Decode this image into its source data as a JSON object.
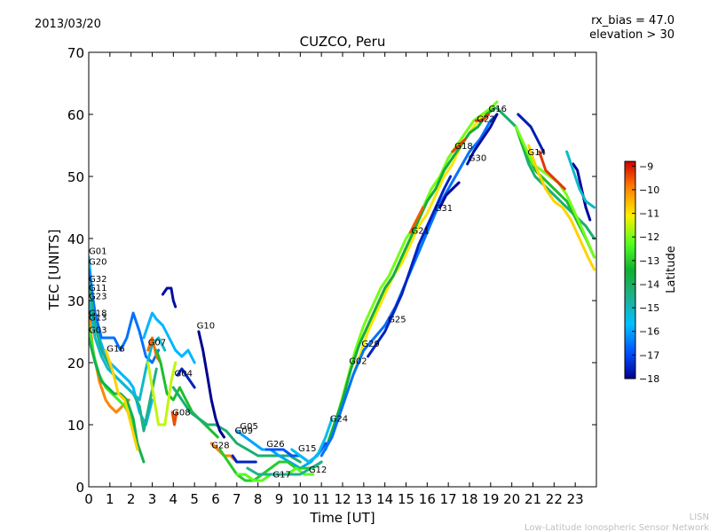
{
  "header": {
    "date": "2013/03/20",
    "rx_bias": "rx_bias = 47.0",
    "elevation": "elevation > 30"
  },
  "footer": {
    "org_short": "LISN",
    "org_long": "Low-Latitude Ionospheric Sensor Network"
  },
  "colors": {
    "low": "#00008f",
    "c1": "#0050ff",
    "c2": "#00c0ff",
    "c3": "#1fb08a",
    "c4": "#10b030",
    "c5": "#50ff20",
    "c6": "#ffef00",
    "c7": "#ff8000",
    "high": "#d00000"
  },
  "chart_data": {
    "type": "line",
    "title": "CUZCO, Peru",
    "xlabel": "Time [UT]",
    "ylabel": "TEC [UNITS]",
    "xlim": [
      0,
      24
    ],
    "ylim": [
      0,
      70
    ],
    "xticks": [
      0,
      1,
      2,
      3,
      4,
      5,
      6,
      7,
      8,
      9,
      10,
      11,
      12,
      13,
      14,
      15,
      16,
      17,
      18,
      19,
      20,
      21,
      22,
      23
    ],
    "yticks": [
      0,
      10,
      20,
      30,
      40,
      50,
      60,
      70
    ],
    "colorbar": {
      "label": "Latitude",
      "range": [
        -18,
        -8.8
      ],
      "ticks": [
        -9,
        -10,
        -11,
        -12,
        -13,
        -14,
        -15,
        -16,
        -17,
        -18
      ]
    },
    "labels": [
      {
        "text": "G01",
        "x": 0.0,
        "y": 37.5
      },
      {
        "text": "G20",
        "x": 0.0,
        "y": 35.8
      },
      {
        "text": "G32",
        "x": 0.0,
        "y": 33.0
      },
      {
        "text": "G11",
        "x": 0.0,
        "y": 31.6
      },
      {
        "text": "G23",
        "x": 0.0,
        "y": 30.2
      },
      {
        "text": "G18",
        "x": 0.0,
        "y": 27.5
      },
      {
        "text": "G13",
        "x": 0.0,
        "y": 26.8
      },
      {
        "text": "G03",
        "x": 0.0,
        "y": 24.8
      },
      {
        "text": "G16",
        "x": 0.85,
        "y": 21.8
      },
      {
        "text": "G07",
        "x": 2.8,
        "y": 22.8
      },
      {
        "text": "G10",
        "x": 5.1,
        "y": 25.5
      },
      {
        "text": "G04",
        "x": 4.05,
        "y": 17.8
      },
      {
        "text": "G08",
        "x": 3.95,
        "y": 11.5
      },
      {
        "text": "G28",
        "x": 5.8,
        "y": 6.2
      },
      {
        "text": "G05",
        "x": 7.15,
        "y": 9.3
      },
      {
        "text": "G09",
        "x": 6.9,
        "y": 8.6
      },
      {
        "text": "G26",
        "x": 8.4,
        "y": 6.4
      },
      {
        "text": "G15",
        "x": 9.9,
        "y": 5.7
      },
      {
        "text": "G17",
        "x": 8.7,
        "y": 1.5
      },
      {
        "text": "G12",
        "x": 10.4,
        "y": 2.3
      },
      {
        "text": "G24",
        "x": 11.4,
        "y": 10.5
      },
      {
        "text": "G02",
        "x": 12.3,
        "y": 19.8
      },
      {
        "text": "G29",
        "x": 12.9,
        "y": 22.6
      },
      {
        "text": "G25",
        "x": 14.15,
        "y": 26.5
      },
      {
        "text": "G21",
        "x": 15.25,
        "y": 40.8
      },
      {
        "text": "G31",
        "x": 16.35,
        "y": 44.4
      },
      {
        "text": "G18",
        "x": 17.3,
        "y": 54.4
      },
      {
        "text": "G30",
        "x": 17.95,
        "y": 52.5
      },
      {
        "text": "G22",
        "x": 18.35,
        "y": 58.8
      },
      {
        "text": "G16",
        "x": 18.9,
        "y": 60.4
      },
      {
        "text": "G14",
        "x": 20.75,
        "y": 53.4
      }
    ],
    "series": [
      {
        "name": "rise-yellow",
        "lat": -12,
        "x": [
          11.3,
          11.8,
          12.2,
          12.6,
          13.0,
          13.4,
          13.8,
          14.2,
          14.6,
          15.0,
          15.4,
          15.8,
          16.2,
          16.6,
          17.0,
          17.4,
          17.8,
          18.2,
          18.6,
          19.0,
          19.3
        ],
        "y": [
          7,
          12,
          17,
          22,
          26,
          29,
          32,
          34,
          37,
          40,
          42,
          45,
          48,
          50,
          53,
          55,
          57,
          59,
          60,
          61,
          62
        ]
      },
      {
        "name": "rise-orange",
        "lat": -11,
        "x": [
          11.5,
          12.0,
          12.4,
          12.8,
          13.2,
          13.6,
          14.0,
          14.4,
          14.8,
          15.2,
          15.6,
          16.0,
          16.4,
          16.8,
          17.2,
          17.6,
          18.0,
          18.4,
          18.8,
          19.2
        ],
        "y": [
          8,
          13,
          17,
          21,
          25,
          28,
          31,
          34,
          36,
          39,
          42,
          44,
          47,
          50,
          52,
          55,
          57,
          59,
          60,
          61
        ]
      },
      {
        "name": "rise-green",
        "lat": -13.5,
        "x": [
          11.2,
          11.6,
          12.0,
          12.4,
          12.8,
          13.2,
          13.6,
          14.0,
          14.4,
          14.8,
          15.2,
          15.6,
          16.0,
          16.4,
          16.8,
          17.2,
          17.6,
          18.0,
          18.4,
          18.8,
          19.2
        ],
        "y": [
          6,
          10,
          14,
          19,
          23,
          26,
          29,
          32,
          34,
          37,
          40,
          43,
          46,
          48,
          51,
          53,
          55,
          57,
          58,
          60,
          61
        ]
      },
      {
        "name": "rise-blue",
        "lat": -16.5,
        "x": [
          11.0,
          11.5,
          12.0,
          12.5,
          13.0,
          13.5,
          14.0,
          14.5,
          15.0,
          15.5,
          16.0,
          16.5,
          17.0,
          17.5,
          18.0,
          18.5,
          19.0,
          19.3
        ],
        "y": [
          5,
          8,
          13,
          18,
          22,
          24,
          26,
          29,
          33,
          37,
          41,
          45,
          48,
          51,
          54,
          56,
          59,
          60
        ]
      },
      {
        "name": "G25",
        "lat": -17.5,
        "x": [
          13.2,
          13.6,
          14.0,
          14.4,
          14.8,
          15.2,
          15.6,
          16.0,
          16.4,
          16.8,
          17.1
        ],
        "y": [
          21,
          23,
          25,
          28,
          31,
          35,
          39,
          42,
          45,
          48,
          50
        ]
      },
      {
        "name": "G30",
        "lat": -17.8,
        "x": [
          17.9,
          18.2,
          18.6,
          19.0,
          19.3
        ],
        "y": [
          52,
          54,
          56,
          58,
          60
        ]
      },
      {
        "name": "G18-early",
        "lat": -10,
        "x": [
          0.0,
          0.2,
          0.5,
          0.8,
          1.0,
          1.3,
          1.6,
          1.9
        ],
        "y": [
          28,
          22,
          17,
          14,
          13,
          12,
          13,
          14
        ]
      },
      {
        "name": "G13",
        "lat": -12.5,
        "x": [
          0.0,
          0.25,
          0.5,
          0.8,
          1.1,
          1.4,
          1.7,
          2.0,
          2.2
        ],
        "y": [
          26,
          21,
          18,
          16,
          15,
          14,
          13,
          11,
          9
        ]
      },
      {
        "name": "G03",
        "lat": -13.8,
        "x": [
          0.0,
          0.3,
          0.6,
          0.9,
          1.2,
          1.5,
          1.8,
          2.1,
          2.3,
          2.6
        ],
        "y": [
          24,
          20,
          17,
          16,
          15,
          15,
          14,
          11,
          7,
          4
        ]
      },
      {
        "name": "G01",
        "lat": -15.8,
        "x": [
          0.0,
          0.2,
          0.4,
          0.7,
          1.0,
          1.3,
          1.6,
          1.9,
          2.1,
          2.4,
          2.7,
          3.0
        ],
        "y": [
          37,
          30,
          25,
          22,
          20,
          19,
          18,
          17,
          16,
          12,
          10,
          14
        ]
      },
      {
        "name": "G20",
        "lat": -16.5,
        "x": [
          0.0,
          0.3,
          0.6,
          0.9,
          1.2,
          1.5,
          1.8,
          2.1,
          2.4,
          2.7,
          3.0,
          3.3
        ],
        "y": [
          35,
          28,
          24,
          24,
          24,
          22,
          24,
          28,
          25,
          21,
          20,
          22
        ]
      },
      {
        "name": "G32",
        "lat": -14.5,
        "x": [
          0.0,
          0.3,
          0.6,
          0.9,
          1.2,
          1.5,
          1.8,
          2.1,
          2.4,
          2.6,
          2.9,
          3.2
        ],
        "y": [
          33,
          26,
          22,
          20,
          18,
          17,
          16,
          15,
          13,
          9,
          14,
          19
        ]
      },
      {
        "name": "G23",
        "lat": -15.2,
        "x": [
          0.0,
          0.3,
          0.6,
          0.9,
          1.2,
          1.5,
          1.8,
          2.1,
          2.4,
          2.7,
          3.0,
          3.3,
          3.6
        ],
        "y": [
          30,
          24,
          21,
          19,
          18,
          17,
          16,
          15,
          14,
          19,
          23,
          24,
          22
        ]
      },
      {
        "name": "G07",
        "lat": -15.8,
        "x": [
          2.6,
          2.8,
          3.0,
          3.2,
          3.5,
          3.8,
          4.1,
          4.4,
          4.7,
          5.0
        ],
        "y": [
          24,
          26,
          28,
          27,
          26,
          24,
          22,
          21,
          22,
          20
        ]
      },
      {
        "name": "G07b",
        "lat": -9.8,
        "x": [
          2.8,
          3.0,
          3.2,
          3.4
        ],
        "y": [
          22,
          24,
          21,
          20
        ]
      },
      {
        "name": "G04",
        "lat": -13.2,
        "x": [
          3.2,
          3.4,
          3.7,
          4.0,
          4.3,
          4.6,
          4.9,
          5.2,
          5.5,
          5.8,
          6.1
        ],
        "y": [
          22,
          20,
          15,
          14,
          16,
          14,
          12,
          11,
          10,
          9,
          8
        ]
      },
      {
        "name": "G04b",
        "lat": -11.5,
        "x": [
          2.8,
          3.0,
          3.3,
          3.6,
          3.9,
          4.1
        ],
        "y": [
          20,
          16,
          10,
          10,
          17,
          20
        ]
      },
      {
        "name": "G16-early",
        "lat": -10.8,
        "x": [
          0.8,
          1.1,
          1.4,
          1.7,
          2.0,
          2.3
        ],
        "y": [
          22,
          19,
          15,
          14,
          10,
          6
        ]
      },
      {
        "name": "mid-green",
        "lat": -14.2,
        "x": [
          4.0,
          4.4,
          4.8,
          5.2,
          5.6,
          6.0,
          6.5,
          7.0,
          7.5,
          8.0,
          8.5,
          9.0,
          9.5,
          10.0
        ],
        "y": [
          16,
          14,
          12,
          11,
          10,
          10,
          9,
          7,
          6,
          5,
          5,
          5,
          5,
          4
        ]
      },
      {
        "name": "G10",
        "lat": -18,
        "x": [
          5.2,
          5.4,
          5.6,
          5.8,
          6.0,
          6.2,
          6.4
        ],
        "y": [
          25,
          22,
          18,
          14,
          11,
          9,
          8
        ]
      },
      {
        "name": "late-blue",
        "lat": -17.5,
        "x": [
          4.2,
          4.4,
          4.6,
          4.8,
          5.0
        ],
        "y": [
          18,
          19,
          18,
          17,
          16
        ]
      },
      {
        "name": "loop-blue",
        "lat": -17.8,
        "x": [
          3.5,
          3.7,
          3.9,
          4.0,
          4.1
        ],
        "y": [
          31,
          32,
          32,
          30,
          29
        ]
      },
      {
        "name": "G08",
        "lat": -9.5,
        "x": [
          3.95,
          4.05,
          4.15
        ],
        "y": [
          12,
          10,
          12
        ]
      },
      {
        "name": "G28",
        "lat": -10,
        "x": [
          5.8,
          6.1,
          6.4,
          6.7,
          7.0
        ],
        "y": [
          7,
          6,
          5,
          5,
          4
        ]
      },
      {
        "name": "G05",
        "lat": -16,
        "x": [
          7.0,
          7.4,
          7.8,
          8.2,
          8.6,
          9.0,
          9.5,
          10.0,
          10.5,
          11.0
        ],
        "y": [
          9,
          8,
          7,
          6,
          6,
          5,
          4,
          3,
          4,
          6
        ]
      },
      {
        "name": "G09",
        "lat": -17.5,
        "x": [
          6.8,
          7.0,
          7.3,
          7.6,
          7.9
        ],
        "y": [
          5,
          4,
          4,
          4,
          4
        ]
      },
      {
        "name": "G26",
        "lat": -16.8,
        "x": [
          8.4,
          8.8,
          9.2,
          9.6,
          10.0,
          10.4,
          10.8,
          11.2
        ],
        "y": [
          6,
          6,
          6,
          5,
          5,
          4,
          5,
          7
        ]
      },
      {
        "name": "G15",
        "lat": -13,
        "x": [
          6.2,
          6.6,
          7.0,
          7.4,
          7.8,
          8.2,
          8.6,
          9.0,
          9.4,
          9.8,
          10.2,
          10.6,
          11.0
        ],
        "y": [
          6,
          4,
          2,
          1,
          1,
          2,
          3,
          4,
          4,
          3,
          3,
          3,
          4
        ]
      },
      {
        "name": "G17",
        "lat": -12.2,
        "x": [
          7.0,
          7.4,
          7.8,
          8.2,
          8.6,
          9.0,
          9.4,
          9.8,
          10.2,
          10.6
        ],
        "y": [
          2,
          2,
          1,
          1,
          2,
          2,
          2,
          3,
          2,
          2
        ]
      },
      {
        "name": "G12",
        "lat": -14.6,
        "x": [
          7.5,
          8.0,
          8.5,
          9.0,
          9.5,
          10.0,
          10.5,
          11.0
        ],
        "y": [
          3,
          2,
          2,
          2,
          2,
          2,
          3,
          4
        ]
      },
      {
        "name": "G24",
        "lat": -15.5,
        "x": [
          9.6,
          10.0,
          10.4,
          10.8,
          11.2,
          11.5
        ],
        "y": [
          6,
          5,
          4,
          5,
          8,
          11
        ]
      },
      {
        "name": "G16-late",
        "lat": -14.2,
        "x": [
          19.3,
          19.6,
          19.9,
          20.2,
          20.5,
          20.8,
          21.1,
          21.4,
          21.7,
          22.0,
          22.3,
          22.6,
          22.9,
          23.2,
          23.5,
          23.9
        ],
        "y": [
          61,
          60,
          59,
          58,
          55,
          52,
          50,
          49,
          48,
          47,
          46,
          45,
          44,
          43,
          42,
          40
        ]
      },
      {
        "name": "G14",
        "lat": -13.2,
        "x": [
          20.2,
          20.5,
          20.8,
          21.1,
          21.4,
          21.7,
          22.0,
          22.3,
          22.6,
          22.9,
          23.2,
          23.5,
          23.9
        ],
        "y": [
          58,
          55,
          53,
          51,
          50,
          49,
          48,
          47,
          46,
          44,
          42,
          40,
          37
        ]
      },
      {
        "name": "late-yellow",
        "lat": -12,
        "x": [
          20.2,
          20.6,
          21.0,
          21.4,
          21.8,
          22.2,
          22.6,
          23.0,
          23.4,
          23.9
        ],
        "y": [
          58,
          55,
          52,
          51,
          50,
          49,
          47,
          44,
          41,
          37
        ]
      },
      {
        "name": "late-orange",
        "lat": -10.8,
        "x": [
          20.8,
          21.2,
          21.6,
          22.0,
          22.4,
          22.8,
          23.2,
          23.6,
          23.9
        ],
        "y": [
          55,
          51,
          48,
          46,
          45,
          43,
          40,
          37,
          35
        ]
      },
      {
        "name": "late-red",
        "lat": -9.3,
        "x": [
          21.3,
          21.6,
          21.9,
          22.2,
          22.5
        ],
        "y": [
          54,
          51,
          50,
          49,
          48
        ]
      },
      {
        "name": "late-blue2",
        "lat": -17.6,
        "x": [
          20.3,
          20.6,
          20.9,
          21.2,
          21.5
        ],
        "y": [
          60,
          59,
          58,
          56,
          54
        ]
      },
      {
        "name": "late-navy",
        "lat": -17.9,
        "x": [
          22.9,
          23.1,
          23.3,
          23.5,
          23.7
        ],
        "y": [
          52,
          51,
          48,
          45,
          43
        ]
      },
      {
        "name": "late-teal",
        "lat": -15.2,
        "x": [
          22.6,
          22.9,
          23.2,
          23.5,
          23.9
        ],
        "y": [
          54,
          51,
          48,
          46,
          45
        ]
      },
      {
        "name": "G21",
        "lat": -9.6,
        "x": [
          15.2,
          15.5,
          15.8
        ],
        "y": [
          41,
          43,
          45
        ]
      },
      {
        "name": "G18-late",
        "lat": -9.4,
        "x": [
          17.2,
          17.5,
          17.8
        ],
        "y": [
          54,
          55,
          56
        ]
      },
      {
        "name": "G22",
        "lat": -9.3,
        "x": [
          18.3,
          18.6,
          18.9
        ],
        "y": [
          59,
          59,
          60
        ]
      },
      {
        "name": "G31",
        "lat": -17.9,
        "x": [
          16.6,
          16.9,
          17.2,
          17.5
        ],
        "y": [
          45,
          47,
          48,
          49
        ]
      }
    ]
  }
}
